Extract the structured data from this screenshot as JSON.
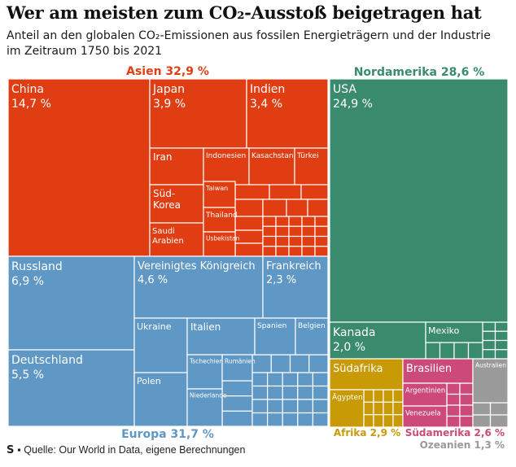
{
  "header": {
    "title": "Wer am meisten zum CO₂-Ausstoß beigetragen hat",
    "subtitle": "Anteil an den globalen CO₂-Emissionen aus fossilen Energieträgern und der Industrie im Zeitraum 1750 bis 2021"
  },
  "footer": {
    "logo": "S",
    "source": "▪ Quelle: Our World in Data, eigene Berechnungen"
  },
  "colors": {
    "asia": "#e03d13",
    "europe": "#5f97c5",
    "north_america": "#3a8a6e",
    "africa": "#c89a06",
    "south_america": "#cc4a78",
    "oceania": "#9a9a9a",
    "border": "#ffffff"
  },
  "chart_data": {
    "type": "treemap",
    "unit": "%",
    "title": "Wer am meisten zum CO₂-Ausstoß beigetragen hat",
    "regions": [
      {
        "id": "asia",
        "label": "Asien 32,9 %",
        "value": 32.9,
        "color": "#e03d13"
      },
      {
        "id": "north_america",
        "label": "Nordamerika 28,6 %",
        "value": 28.6,
        "color": "#3a8a6e"
      },
      {
        "id": "europe",
        "label": "Europa 31,7 %",
        "value": 31.7,
        "color": "#5f97c5"
      },
      {
        "id": "africa",
        "label": "Afrika 2,9 %",
        "value": 2.9,
        "color": "#c89a06"
      },
      {
        "id": "south_america",
        "label": "Südamerika 2,6 %",
        "value": 2.6,
        "color": "#cc4a78"
      },
      {
        "id": "oceania",
        "label": "Ozeanien 1,3 %",
        "value": 1.3,
        "color": "#9a9a9a"
      }
    ],
    "countries": [
      {
        "name": "China",
        "value": 14.7,
        "value_label": "14,7 %",
        "region": "asia"
      },
      {
        "name": "Japan",
        "value": 3.9,
        "value_label": "3,9 %",
        "region": "asia"
      },
      {
        "name": "Indien",
        "value": 3.4,
        "value_label": "3,4 %",
        "region": "asia"
      },
      {
        "name": "Iran",
        "region": "asia"
      },
      {
        "name": "Indonesien",
        "region": "asia"
      },
      {
        "name": "Kasachstan",
        "region": "asia"
      },
      {
        "name": "Türkei",
        "region": "asia"
      },
      {
        "name": "Süd-Korea",
        "region": "asia"
      },
      {
        "name": "Saudi Arabien",
        "region": "asia"
      },
      {
        "name": "Taiwan",
        "region": "asia"
      },
      {
        "name": "Thailand",
        "region": "asia"
      },
      {
        "name": "Usbekistan",
        "region": "asia"
      },
      {
        "name": "USA",
        "value": 24.9,
        "value_label": "24,9 %",
        "region": "north_america"
      },
      {
        "name": "Kanada",
        "value": 2.0,
        "value_label": "2,0 %",
        "region": "north_america"
      },
      {
        "name": "Mexiko",
        "region": "north_america"
      },
      {
        "name": "Russland",
        "value": 6.9,
        "value_label": "6,9 %",
        "region": "europe"
      },
      {
        "name": "Deutschland",
        "value": 5.5,
        "value_label": "5,5 %",
        "region": "europe"
      },
      {
        "name": "Vereinigtes Königreich",
        "value": 4.6,
        "value_label": "4,6 %",
        "region": "europe"
      },
      {
        "name": "Frankreich",
        "value": 2.3,
        "value_label": "2,3 %",
        "region": "europe"
      },
      {
        "name": "Ukraine",
        "region": "europe"
      },
      {
        "name": "Italien",
        "region": "europe"
      },
      {
        "name": "Spanien",
        "region": "europe"
      },
      {
        "name": "Belgien",
        "region": "europe"
      },
      {
        "name": "Polen",
        "region": "europe"
      },
      {
        "name": "Tschechien",
        "region": "europe"
      },
      {
        "name": "Rumänien",
        "region": "europe"
      },
      {
        "name": "Niederlande",
        "region": "europe"
      },
      {
        "name": "Südafrika",
        "region": "africa"
      },
      {
        "name": "Ägypten",
        "region": "africa"
      },
      {
        "name": "Brasilien",
        "region": "south_america"
      },
      {
        "name": "Argentinien",
        "region": "south_america"
      },
      {
        "name": "Venezuela",
        "region": "south_america"
      },
      {
        "name": "Australien",
        "region": "oceania"
      }
    ]
  }
}
